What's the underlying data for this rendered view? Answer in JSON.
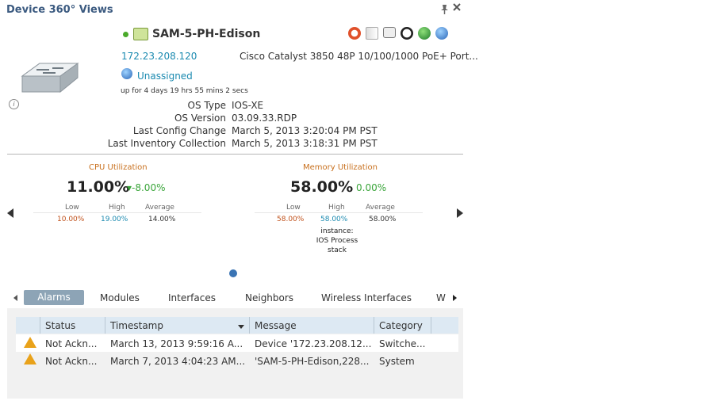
{
  "window": {
    "title": "Device 360° Views"
  },
  "device": {
    "name": "SAM-5-PH-Edison",
    "ip": "172.23.208.120",
    "model": "Cisco Catalyst 3850 48P 10/100/1000 PoE+ Port...",
    "location": "Unassigned",
    "uptime": "up for 4 days 19 hrs 55 mins 2 secs",
    "status_color": "#4aaa2a"
  },
  "toolbar_icons": [
    "alarm-clock-icon",
    "play-icon",
    "message-icon",
    "headset-icon",
    "green-ball-icon",
    "globe-icon"
  ],
  "details": [
    {
      "label": "OS Type",
      "value": "IOS-XE"
    },
    {
      "label": "OS Version",
      "value": "03.09.33.RDP"
    },
    {
      "label": "Last Config Change",
      "value": "March 5, 2013 3:20:04 PM PST"
    },
    {
      "label": "Last Inventory Collection",
      "value": "March 5, 2013 3:18:31 PM PST"
    }
  ],
  "cpu": {
    "title": "CPU Utilization",
    "value": "11.00%",
    "delta": "▾-8.00%",
    "low_label": "Low",
    "high_label": "High",
    "avg_label": "Average",
    "low": "10.00%",
    "high": "19.00%",
    "avg": "14.00%"
  },
  "memory": {
    "title": "Memory Utilization",
    "value": "58.00%",
    "delta": "0.00%",
    "low_label": "Low",
    "high_label": "High",
    "avg_label": "Average",
    "low": "58.00%",
    "high": "58.00%",
    "avg": "58.00%",
    "instance_line1": "instance:",
    "instance_line2": "IOS Process",
    "instance_line3": "stack"
  },
  "tabs": [
    {
      "label": "Alarms",
      "active": true
    },
    {
      "label": "Modules"
    },
    {
      "label": "Interfaces"
    },
    {
      "label": "Neighbors"
    },
    {
      "label": "Wireless Interfaces"
    },
    {
      "label": "W"
    }
  ],
  "alarms": {
    "columns": [
      "Status",
      "Timestamp",
      "Message",
      "Category"
    ],
    "rows": [
      {
        "status": "Not Ackn...",
        "timestamp": "March 13, 2013 9:59:16 A...",
        "message": "Device '172.23.208.12...",
        "category": "Switche..."
      },
      {
        "status": "Not Ackn...",
        "timestamp": "March 7, 2013 4:04:23 AM...",
        "message": "'SAM-5-PH-Edison,228...",
        "category": "System"
      }
    ]
  },
  "colors": {
    "accent": "#1b8ab0",
    "title": "#3b5a80",
    "metric_title": "#c8701e",
    "delta_green": "#3aa53a",
    "low_red": "#c0501a",
    "high_teal": "#1b8ab0"
  }
}
